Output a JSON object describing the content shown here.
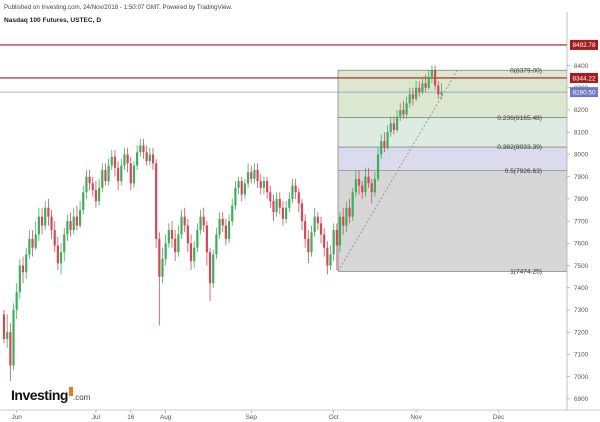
{
  "header": {
    "published": "Published on Investing.com, 24/Nov/2018 - 1:50:07 GMT, Powered by TradingView.",
    "title": "Nasdaq 100 Futures, USTEC, D"
  },
  "logo": {
    "brand": "Investing",
    "suffix": ".com"
  },
  "colors": {
    "up": "#3dae5a",
    "down": "#d4495a",
    "level": "#a51c1c",
    "axis": "#999999",
    "current_line": "#8e95c8"
  },
  "chart_data": {
    "type": "candlestick",
    "ylim": [
      6850,
      8560
    ],
    "y_ticks": [
      6900,
      7000,
      7100,
      7200,
      7300,
      7400,
      7500,
      7600,
      7700,
      7800,
      7900,
      8000,
      8100,
      8200,
      8300,
      8400
    ],
    "x_tick_labels": [
      {
        "label": "Jun",
        "index": 4
      },
      {
        "label": "Jul",
        "index": 29
      },
      {
        "label": "16",
        "index": 40
      },
      {
        "label": "Aug",
        "index": 51
      },
      {
        "label": "Sep",
        "index": 78
      },
      {
        "label": "Oct",
        "index": 104
      },
      {
        "label": "Nov",
        "index": 130
      },
      {
        "label": "Dec",
        "index": 156
      }
    ],
    "horizontal_levels": [
      {
        "label": "8492.78",
        "value": 8492.78,
        "style": "resistance"
      },
      {
        "label": "8344.22",
        "value": 8344.22,
        "style": "resistance"
      },
      {
        "label": "8280.50",
        "value": 8280.5,
        "style": "current"
      }
    ],
    "fibonacci": {
      "start_index": 106,
      "end_index": 143,
      "levels": [
        {
          "label": "0(8379.00)",
          "value": 8379.0
        },
        {
          "label": "0.236(8165.48)",
          "value": 8165.48
        },
        {
          "label": "0.382(8033.39)",
          "value": 8033.39
        },
        {
          "label": "0.5(7926.63)",
          "value": 7926.63
        },
        {
          "label": "1(7474.25)",
          "value": 7474.25
        }
      ]
    },
    "candles": [
      [
        7280,
        7170,
        7300,
        7150
      ],
      [
        7170,
        7200,
        7280,
        7130
      ],
      [
        7200,
        7050,
        7240,
        6980
      ],
      [
        7050,
        7300,
        7330,
        7030
      ],
      [
        7300,
        7380,
        7420,
        7260
      ],
      [
        7380,
        7500,
        7530,
        7350
      ],
      [
        7500,
        7470,
        7540,
        7420
      ],
      [
        7470,
        7550,
        7580,
        7440
      ],
      [
        7550,
        7620,
        7660,
        7530
      ],
      [
        7620,
        7580,
        7660,
        7540
      ],
      [
        7580,
        7640,
        7700,
        7570
      ],
      [
        7640,
        7720,
        7760,
        7610
      ],
      [
        7720,
        7680,
        7760,
        7640
      ],
      [
        7680,
        7760,
        7790,
        7660
      ],
      [
        7760,
        7720,
        7800,
        7680
      ],
      [
        7720,
        7660,
        7750,
        7620
      ],
      [
        7660,
        7590,
        7700,
        7560
      ],
      [
        7590,
        7510,
        7630,
        7480
      ],
      [
        7510,
        7560,
        7600,
        7460
      ],
      [
        7560,
        7640,
        7670,
        7520
      ],
      [
        7640,
        7700,
        7730,
        7610
      ],
      [
        7700,
        7660,
        7740,
        7630
      ],
      [
        7660,
        7720,
        7760,
        7640
      ],
      [
        7720,
        7680,
        7770,
        7660
      ],
      [
        7680,
        7750,
        7790,
        7670
      ],
      [
        7750,
        7830,
        7860,
        7730
      ],
      [
        7830,
        7900,
        7930,
        7800
      ],
      [
        7900,
        7870,
        7930,
        7840
      ],
      [
        7870,
        7840,
        7900,
        7810
      ],
      [
        7840,
        7790,
        7880,
        7760
      ],
      [
        7790,
        7850,
        7890,
        7770
      ],
      [
        7850,
        7930,
        7960,
        7830
      ],
      [
        7930,
        7880,
        7960,
        7860
      ],
      [
        7880,
        7950,
        7980,
        7860
      ],
      [
        7950,
        7990,
        8020,
        7930
      ],
      [
        7990,
        7940,
        8020,
        7900
      ],
      [
        7940,
        7880,
        7970,
        7840
      ],
      [
        7880,
        7950,
        7980,
        7860
      ],
      [
        7950,
        8000,
        8030,
        7930
      ],
      [
        8000,
        7960,
        8030,
        7920
      ],
      [
        7960,
        7870,
        7990,
        7840
      ],
      [
        7870,
        7950,
        7970,
        7850
      ],
      [
        7950,
        8010,
        8040,
        7930
      ],
      [
        8010,
        8040,
        8070,
        7990
      ],
      [
        8040,
        8010,
        8070,
        7980
      ],
      [
        8010,
        7970,
        8040,
        7950
      ],
      [
        7970,
        8000,
        8030,
        7950
      ],
      [
        8000,
        7960,
        8030,
        7930
      ],
      [
        7960,
        7620,
        7980,
        7580
      ],
      [
        7620,
        7450,
        7650,
        7230
      ],
      [
        7450,
        7530,
        7580,
        7420
      ],
      [
        7530,
        7600,
        7640,
        7500
      ],
      [
        7600,
        7660,
        7690,
        7580
      ],
      [
        7660,
        7620,
        7700,
        7580
      ],
      [
        7620,
        7560,
        7660,
        7520
      ],
      [
        7560,
        7640,
        7680,
        7540
      ],
      [
        7640,
        7720,
        7750,
        7620
      ],
      [
        7720,
        7680,
        7760,
        7650
      ],
      [
        7680,
        7600,
        7710,
        7560
      ],
      [
        7600,
        7520,
        7640,
        7480
      ],
      [
        7520,
        7580,
        7610,
        7490
      ],
      [
        7580,
        7660,
        7690,
        7560
      ],
      [
        7660,
        7720,
        7750,
        7640
      ],
      [
        7720,
        7680,
        7760,
        7650
      ],
      [
        7680,
        7560,
        7700,
        7500
      ],
      [
        7560,
        7420,
        7580,
        7340
      ],
      [
        7420,
        7550,
        7570,
        7400
      ],
      [
        7550,
        7640,
        7670,
        7530
      ],
      [
        7640,
        7710,
        7740,
        7620
      ],
      [
        7710,
        7680,
        7740,
        7650
      ],
      [
        7680,
        7620,
        7710,
        7590
      ],
      [
        7620,
        7700,
        7730,
        7600
      ],
      [
        7700,
        7770,
        7800,
        7680
      ],
      [
        7770,
        7850,
        7880,
        7750
      ],
      [
        7850,
        7880,
        7900,
        7820
      ],
      [
        7880,
        7820,
        7900,
        7790
      ],
      [
        7820,
        7870,
        7890,
        7800
      ],
      [
        7870,
        7920,
        7960,
        7850
      ],
      [
        7920,
        7890,
        7950,
        7870
      ],
      [
        7890,
        7930,
        7960,
        7870
      ],
      [
        7930,
        7880,
        7960,
        7850
      ],
      [
        7880,
        7850,
        7910,
        7820
      ],
      [
        7850,
        7880,
        7900,
        7820
      ],
      [
        7880,
        7830,
        7900,
        7800
      ],
      [
        7830,
        7790,
        7860,
        7760
      ],
      [
        7790,
        7740,
        7820,
        7700
      ],
      [
        7740,
        7800,
        7830,
        7720
      ],
      [
        7800,
        7760,
        7830,
        7730
      ],
      [
        7760,
        7710,
        7790,
        7680
      ],
      [
        7710,
        7760,
        7790,
        7690
      ],
      [
        7760,
        7800,
        7830,
        7740
      ],
      [
        7800,
        7860,
        7890,
        7780
      ],
      [
        7860,
        7830,
        7890,
        7800
      ],
      [
        7830,
        7780,
        7850,
        7740
      ],
      [
        7780,
        7700,
        7800,
        7660
      ],
      [
        7700,
        7620,
        7730,
        7580
      ],
      [
        7620,
        7560,
        7660,
        7510
      ],
      [
        7560,
        7650,
        7680,
        7540
      ],
      [
        7650,
        7720,
        7760,
        7630
      ],
      [
        7720,
        7690,
        7740,
        7660
      ],
      [
        7690,
        7640,
        7720,
        7600
      ],
      [
        7640,
        7580,
        7670,
        7540
      ],
      [
        7580,
        7500,
        7610,
        7460
      ],
      [
        7500,
        7550,
        7590,
        7480
      ],
      [
        7550,
        7660,
        7690,
        7520
      ],
      [
        7660,
        7590,
        7690,
        7480
      ],
      [
        7590,
        7720,
        7740,
        7560
      ],
      [
        7720,
        7680,
        7760,
        7640
      ],
      [
        7680,
        7760,
        7790,
        7650
      ],
      [
        7760,
        7720,
        7800,
        7690
      ],
      [
        7720,
        7830,
        7850,
        7700
      ],
      [
        7830,
        7890,
        7930,
        7810
      ],
      [
        7890,
        7860,
        7930,
        7820
      ],
      [
        7860,
        7830,
        7880,
        7800
      ],
      [
        7830,
        7900,
        7940,
        7810
      ],
      [
        7900,
        7870,
        7940,
        7850
      ],
      [
        7870,
        7830,
        7890,
        7780
      ],
      [
        7830,
        7890,
        7920,
        7810
      ],
      [
        7890,
        8000,
        8030,
        7880
      ],
      [
        8000,
        8060,
        8090,
        7980
      ],
      [
        8060,
        8030,
        8100,
        8010
      ],
      [
        8030,
        8100,
        8130,
        8020
      ],
      [
        8100,
        8140,
        8170,
        8080
      ],
      [
        8140,
        8110,
        8170,
        8090
      ],
      [
        8110,
        8170,
        8200,
        8100
      ],
      [
        8170,
        8200,
        8230,
        8150
      ],
      [
        8200,
        8180,
        8240,
        8160
      ],
      [
        8180,
        8230,
        8260,
        8160
      ],
      [
        8230,
        8270,
        8300,
        8210
      ],
      [
        8270,
        8250,
        8300,
        8220
      ],
      [
        8250,
        8300,
        8330,
        8240
      ],
      [
        8300,
        8280,
        8330,
        8260
      ],
      [
        8280,
        8320,
        8350,
        8270
      ],
      [
        8320,
        8300,
        8360,
        8280
      ],
      [
        8300,
        8350,
        8380,
        8290
      ],
      [
        8350,
        8380,
        8400,
        8320
      ],
      [
        8380,
        8310,
        8400,
        8290
      ],
      [
        8310,
        8270,
        8330,
        8250
      ],
      [
        8270,
        8280,
        8320,
        8250
      ]
    ]
  }
}
